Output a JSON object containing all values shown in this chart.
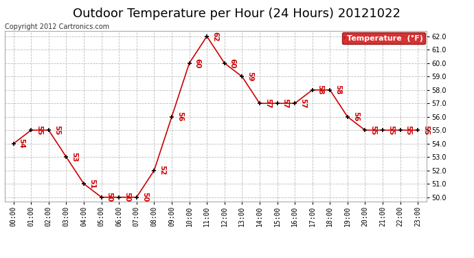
{
  "title": "Outdoor Temperature per Hour (24 Hours) 20121022",
  "copyright": "Copyright 2012 Cartronics.com",
  "legend_label": "Temperature  (°F)",
  "hours": [
    "00:00",
    "01:00",
    "02:00",
    "03:00",
    "04:00",
    "05:00",
    "06:00",
    "07:00",
    "08:00",
    "09:00",
    "10:00",
    "11:00",
    "12:00",
    "13:00",
    "14:00",
    "15:00",
    "16:00",
    "17:00",
    "18:00",
    "19:00",
    "20:00",
    "21:00",
    "22:00",
    "23:00"
  ],
  "temps": [
    54,
    55,
    55,
    53,
    51,
    50,
    50,
    50,
    52,
    56,
    60,
    62,
    60,
    59,
    57,
    57,
    57,
    58,
    58,
    56,
    55,
    55,
    55,
    55
  ],
  "line_color": "#cc0000",
  "marker_color": "#000000",
  "label_color": "#cc0000",
  "grid_color": "#bbbbbb",
  "bg_color": "#ffffff",
  "ylim": [
    49.7,
    62.4
  ],
  "yticks": [
    50.0,
    51.0,
    52.0,
    53.0,
    54.0,
    55.0,
    56.0,
    57.0,
    58.0,
    59.0,
    60.0,
    61.0,
    62.0
  ],
  "title_fontsize": 13,
  "annot_fontsize": 7.5,
  "tick_fontsize": 7,
  "copyright_fontsize": 7,
  "legend_bg": "#cc0000",
  "legend_fg": "#ffffff",
  "legend_fontsize": 8
}
